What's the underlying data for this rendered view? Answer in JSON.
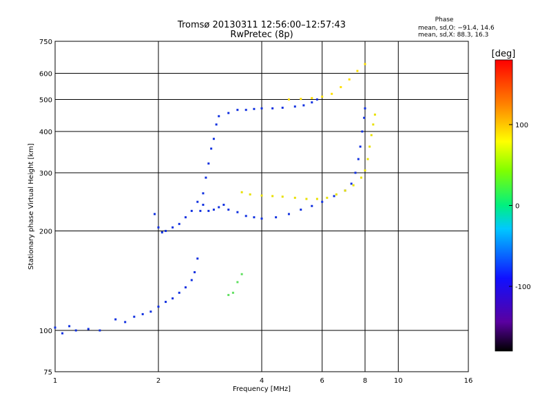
{
  "header": {
    "title_line1": "Tromsø 20130311 12:56:00–12:57:43",
    "title_line2": "RwPretec (8p)",
    "phase_title": "Phase",
    "phase_line_o": "mean, sd,O: −91.4, 14.6",
    "phase_line_x": "mean, sd,X:  88.3, 16.3"
  },
  "chart_data": {
    "type": "scatter",
    "xlabel": "Frequency [MHz]",
    "ylabel": "Stationary phase Virtual Height [km]",
    "x_scale": "log",
    "y_scale": "log",
    "xlim": [
      1,
      16
    ],
    "ylim": [
      75,
      750
    ],
    "x_ticks": [
      1,
      2,
      4,
      6,
      8,
      10,
      16
    ],
    "y_ticks": [
      75,
      100,
      200,
      300,
      400,
      500,
      600,
      750
    ],
    "grid": true,
    "colorbar": {
      "label": "[deg]",
      "range": [
        -180,
        180
      ],
      "ticks": [
        100,
        0,
        -100
      ],
      "colormap": [
        "#000000",
        "#8000c0",
        "#0000ff",
        "#00c0ff",
        "#00ff60",
        "#ffff00",
        "#ff8000",
        "#ff0000"
      ]
    },
    "series": [
      {
        "color": "#1030e0",
        "points": [
          [
            1.0,
            102
          ],
          [
            1.05,
            98
          ],
          [
            1.1,
            103
          ],
          [
            1.15,
            100
          ],
          [
            1.25,
            101
          ],
          [
            1.35,
            100
          ],
          [
            1.5,
            108
          ],
          [
            1.6,
            106
          ],
          [
            1.7,
            110
          ],
          [
            1.8,
            112
          ],
          [
            1.9,
            114
          ],
          [
            2.0,
            118
          ],
          [
            2.1,
            122
          ],
          [
            2.2,
            125
          ],
          [
            2.3,
            130
          ],
          [
            2.4,
            135
          ],
          [
            2.5,
            142
          ],
          [
            2.55,
            150
          ],
          [
            2.6,
            165
          ]
        ]
      },
      {
        "color": "#1030e0",
        "points": [
          [
            1.95,
            225
          ],
          [
            2.0,
            205
          ],
          [
            2.05,
            198
          ],
          [
            2.1,
            200
          ],
          [
            2.2,
            205
          ],
          [
            2.3,
            210
          ],
          [
            2.4,
            220
          ],
          [
            2.5,
            230
          ],
          [
            2.6,
            245
          ],
          [
            2.7,
            240
          ],
          [
            2.8,
            230
          ],
          [
            2.9,
            232
          ],
          [
            3.0,
            236
          ],
          [
            3.1,
            240
          ],
          [
            3.2,
            232
          ],
          [
            3.4,
            228
          ],
          [
            3.6,
            222
          ],
          [
            3.8,
            220
          ],
          [
            4.0,
            218
          ],
          [
            4.4,
            220
          ],
          [
            4.8,
            225
          ],
          [
            5.2,
            232
          ],
          [
            5.6,
            238
          ],
          [
            6.0,
            245
          ],
          [
            6.5,
            255
          ],
          [
            7.0,
            265
          ],
          [
            7.3,
            278
          ],
          [
            7.5,
            300
          ],
          [
            7.65,
            330
          ],
          [
            7.75,
            360
          ],
          [
            7.85,
            400
          ],
          [
            7.95,
            440
          ],
          [
            8.0,
            470
          ]
        ]
      },
      {
        "color": "#1030e0",
        "points": [
          [
            2.65,
            230
          ],
          [
            2.7,
            260
          ],
          [
            2.75,
            290
          ],
          [
            2.8,
            320
          ],
          [
            2.85,
            355
          ],
          [
            2.9,
            380
          ],
          [
            2.95,
            420
          ],
          [
            3.0,
            445
          ],
          [
            3.2,
            455
          ],
          [
            3.4,
            465
          ],
          [
            3.6,
            465
          ],
          [
            3.8,
            468
          ],
          [
            4.0,
            470
          ],
          [
            4.3,
            470
          ],
          [
            4.6,
            472
          ],
          [
            5.0,
            476
          ],
          [
            5.3,
            480
          ],
          [
            5.6,
            490
          ],
          [
            5.8,
            500
          ]
        ]
      },
      {
        "color": "#e8e000",
        "points": [
          [
            3.5,
            262
          ],
          [
            3.7,
            258
          ],
          [
            4.0,
            256
          ],
          [
            4.3,
            255
          ],
          [
            4.6,
            254
          ],
          [
            5.0,
            252
          ],
          [
            5.4,
            250
          ],
          [
            5.8,
            250
          ],
          [
            6.2,
            252
          ],
          [
            6.6,
            258
          ],
          [
            7.0,
            265
          ],
          [
            7.4,
            275
          ],
          [
            7.8,
            290
          ],
          [
            8.0,
            305
          ],
          [
            8.15,
            330
          ],
          [
            8.25,
            360
          ],
          [
            8.35,
            390
          ],
          [
            8.45,
            420
          ],
          [
            8.55,
            450
          ]
        ]
      },
      {
        "color": "#ffe000",
        "points": [
          [
            4.8,
            500
          ],
          [
            5.2,
            502
          ],
          [
            5.6,
            505
          ],
          [
            6.0,
            510
          ],
          [
            6.4,
            520
          ],
          [
            6.8,
            545
          ],
          [
            7.2,
            575
          ],
          [
            7.6,
            610
          ],
          [
            8.0,
            640
          ]
        ]
      },
      {
        "color": "#60e060",
        "points": [
          [
            3.2,
            128
          ],
          [
            3.3,
            130
          ],
          [
            3.4,
            140
          ],
          [
            3.5,
            148
          ]
        ]
      }
    ]
  }
}
